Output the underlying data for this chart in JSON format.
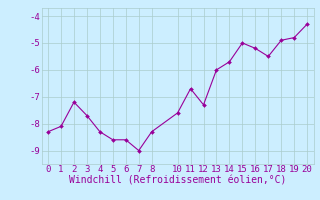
{
  "x": [
    0,
    1,
    2,
    3,
    4,
    5,
    6,
    7,
    8,
    10,
    11,
    12,
    13,
    14,
    15,
    16,
    17,
    18,
    19,
    20
  ],
  "y": [
    -8.3,
    -8.1,
    -7.2,
    -7.7,
    -8.3,
    -8.6,
    -8.6,
    -9.0,
    -8.3,
    -7.6,
    -6.7,
    -7.3,
    -6.0,
    -5.7,
    -5.0,
    -5.2,
    -5.5,
    -4.9,
    -4.8,
    -4.3
  ],
  "line_color": "#990099",
  "marker_color": "#990099",
  "bg_color": "#cceeff",
  "grid_color": "#aacccc",
  "xlabel": "Windchill (Refroidissement éolien,°C)",
  "xlabel_color": "#990099",
  "tick_color": "#990099",
  "ylim": [
    -9.5,
    -3.7
  ],
  "xlim": [
    -0.5,
    20.5
  ],
  "yticks": [
    -9,
    -8,
    -7,
    -6,
    -5,
    -4
  ],
  "xticks": [
    0,
    1,
    2,
    3,
    4,
    5,
    6,
    7,
    8,
    10,
    11,
    12,
    13,
    14,
    15,
    16,
    17,
    18,
    19,
    20
  ],
  "xticklabels": [
    "0",
    "1",
    "2",
    "3",
    "4",
    "5",
    "6",
    "7",
    "8",
    "10",
    "11",
    "12",
    "13",
    "14",
    "15",
    "16",
    "17",
    "18",
    "19",
    "20"
  ],
  "xlabel_fontsize": 7,
  "tick_fontsize": 6.5
}
